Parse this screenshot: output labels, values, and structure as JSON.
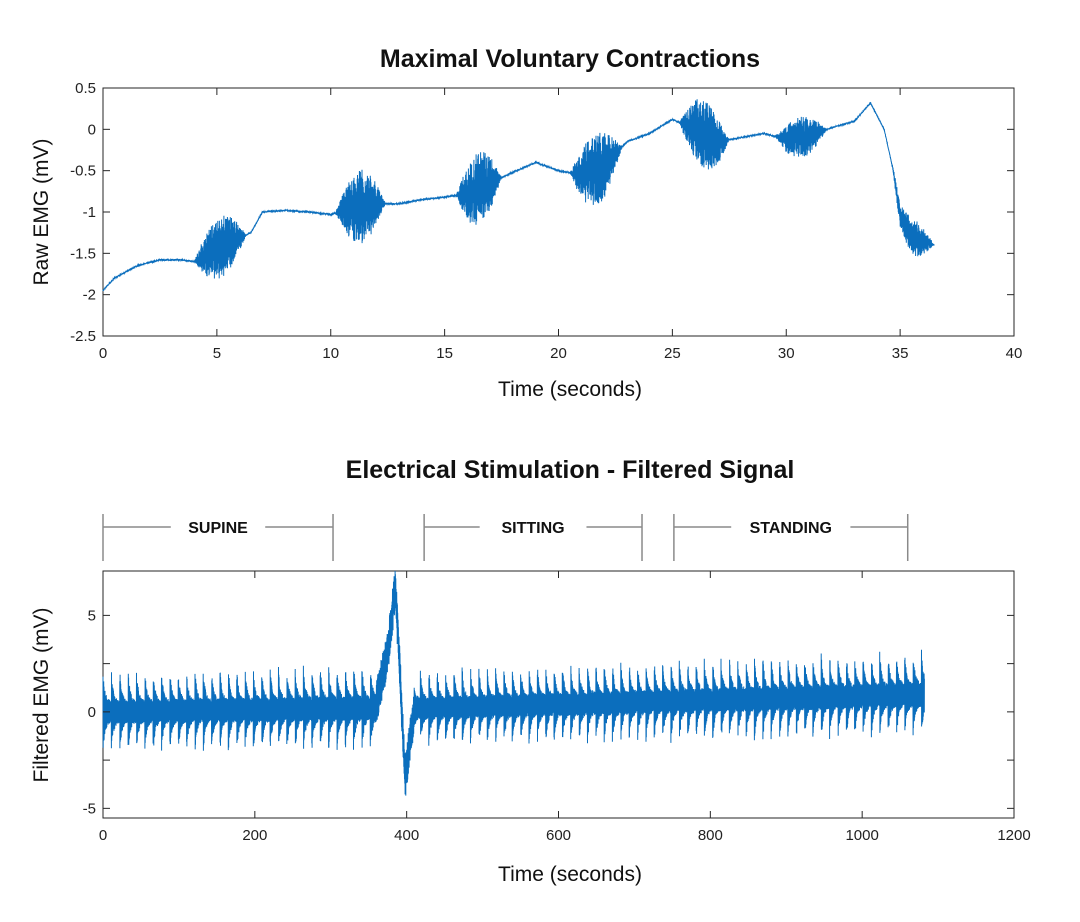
{
  "chart_data": [
    {
      "type": "line",
      "title": "Maximal Voluntary Contractions",
      "xlabel": "Time (seconds)",
      "ylabel": "Raw EMG (mV)",
      "xlim": [
        0,
        40
      ],
      "ylim": [
        -2.5,
        0.5
      ],
      "xticks": [
        "0",
        "5",
        "10",
        "15",
        "20",
        "25",
        "30",
        "35",
        "40"
      ],
      "yticks": [
        "0.5",
        "0",
        "-0.5",
        "-1",
        "-1.5",
        "-2",
        "-2.5"
      ],
      "grid": false,
      "color": "#0b6ebd",
      "series": [
        {
          "baseline": {
            "x": [
              0,
              0.5,
              1.5,
              2.5,
              3.5,
              4,
              5,
              6.5,
              7,
              8,
              9,
              10,
              11,
              12,
              13,
              14,
              15,
              16,
              17,
              18,
              19,
              20,
              21,
              22,
              23,
              24,
              25,
              26,
              27,
              28,
              29,
              30,
              31,
              32,
              33,
              33.7,
              34.3,
              34.7,
              35,
              35.5,
              36,
              36.5
            ],
            "y": [
              -1.95,
              -1.8,
              -1.65,
              -1.58,
              -1.58,
              -1.6,
              -1.45,
              -1.25,
              -1.0,
              -0.98,
              -1.0,
              -1.03,
              -0.95,
              -0.9,
              -0.9,
              -0.85,
              -0.82,
              -0.78,
              -0.65,
              -0.52,
              -0.4,
              -0.5,
              -0.55,
              -0.45,
              -0.15,
              -0.05,
              0.12,
              0.0,
              -0.15,
              -0.1,
              -0.05,
              -0.12,
              -0.08,
              0.02,
              0.1,
              0.32,
              0.0,
              -0.5,
              -1.05,
              -1.3,
              -1.35,
              -1.4
            ]
          },
          "bursts": [
            {
              "start": 4.0,
              "end": 6.3,
              "amplitude": 0.38
            },
            {
              "start": 10.2,
              "end": 12.4,
              "amplitude": 0.45
            },
            {
              "start": 15.5,
              "end": 17.5,
              "amplitude": 0.45
            },
            {
              "start": 20.5,
              "end": 22.8,
              "amplitude": 0.45
            },
            {
              "start": 25.3,
              "end": 27.5,
              "amplitude": 0.42
            },
            {
              "start": 29.5,
              "end": 31.8,
              "amplitude": 0.25
            },
            {
              "start": 34.6,
              "end": 36.5,
              "amplitude": 0.22
            }
          ]
        }
      ]
    },
    {
      "type": "line",
      "title": "Electrical Stimulation - Filtered Signal",
      "xlabel": "Time (seconds)",
      "ylabel": "Filtered EMG (mV)",
      "xlim": [
        0,
        1200
      ],
      "ylim": [
        -5.5,
        7.3
      ],
      "xticks": [
        "0",
        "200",
        "400",
        "600",
        "800",
        "1000",
        "1200"
      ],
      "yticks": [
        "5",
        "0",
        "-5"
      ],
      "grid": false,
      "color": "#0b6ebd",
      "phases": [
        {
          "label": "SUPINE",
          "start": 0,
          "end": 303
        },
        {
          "label": "SITTING",
          "start": 423,
          "end": 710
        },
        {
          "label": "STANDING",
          "start": 752,
          "end": 1060
        }
      ],
      "series": [
        {
          "x_range": [
            0,
            1082
          ],
          "pulse_period": 11,
          "offset": {
            "x": [
              0,
              370,
              420,
              1082
            ],
            "y": [
              0,
              0.2,
              0.2,
              0.9
            ]
          },
          "amplitude": {
            "x": [
              0,
              370,
              420,
              1082
            ],
            "y": [
              2.2,
              2.4,
              2.1,
              2.4
            ]
          },
          "artifact": {
            "x": [
              360,
              375,
              385,
              390,
              398,
              410
            ],
            "y": [
              0.5,
              3.0,
              6.5,
              3.0,
              -3.5,
              0.2
            ]
          }
        }
      ]
    }
  ]
}
